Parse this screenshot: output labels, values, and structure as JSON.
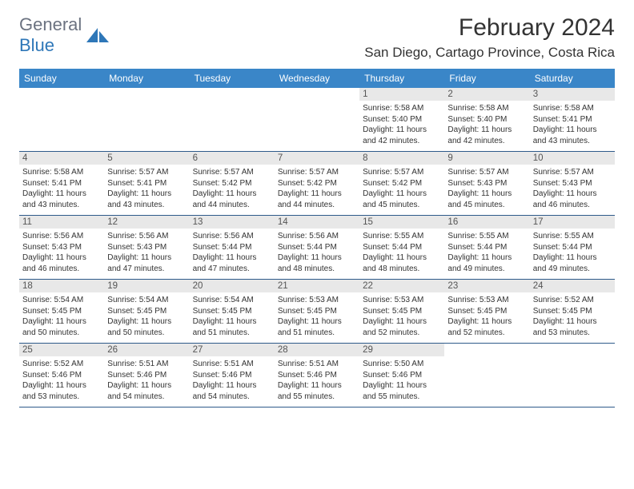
{
  "logo": {
    "text1": "General",
    "text2": "Blue"
  },
  "title": "February 2024",
  "location": "San Diego, Cartago Province, Costa Rica",
  "colors": {
    "header_bg": "#3a86c8",
    "header_text": "#ffffff",
    "daynum_bg": "#e8e8e8",
    "row_border": "#2e5a8a",
    "logo_gray": "#6b7280",
    "logo_blue": "#2e77b8",
    "text": "#333333",
    "background": "#ffffff"
  },
  "day_headers": [
    "Sunday",
    "Monday",
    "Tuesday",
    "Wednesday",
    "Thursday",
    "Friday",
    "Saturday"
  ],
  "weeks": [
    [
      null,
      null,
      null,
      null,
      {
        "n": "1",
        "sr": "5:58 AM",
        "ss": "5:40 PM",
        "dl": "11 hours and 42 minutes."
      },
      {
        "n": "2",
        "sr": "5:58 AM",
        "ss": "5:40 PM",
        "dl": "11 hours and 42 minutes."
      },
      {
        "n": "3",
        "sr": "5:58 AM",
        "ss": "5:41 PM",
        "dl": "11 hours and 43 minutes."
      }
    ],
    [
      {
        "n": "4",
        "sr": "5:58 AM",
        "ss": "5:41 PM",
        "dl": "11 hours and 43 minutes."
      },
      {
        "n": "5",
        "sr": "5:57 AM",
        "ss": "5:41 PM",
        "dl": "11 hours and 43 minutes."
      },
      {
        "n": "6",
        "sr": "5:57 AM",
        "ss": "5:42 PM",
        "dl": "11 hours and 44 minutes."
      },
      {
        "n": "7",
        "sr": "5:57 AM",
        "ss": "5:42 PM",
        "dl": "11 hours and 44 minutes."
      },
      {
        "n": "8",
        "sr": "5:57 AM",
        "ss": "5:42 PM",
        "dl": "11 hours and 45 minutes."
      },
      {
        "n": "9",
        "sr": "5:57 AM",
        "ss": "5:43 PM",
        "dl": "11 hours and 45 minutes."
      },
      {
        "n": "10",
        "sr": "5:57 AM",
        "ss": "5:43 PM",
        "dl": "11 hours and 46 minutes."
      }
    ],
    [
      {
        "n": "11",
        "sr": "5:56 AM",
        "ss": "5:43 PM",
        "dl": "11 hours and 46 minutes."
      },
      {
        "n": "12",
        "sr": "5:56 AM",
        "ss": "5:43 PM",
        "dl": "11 hours and 47 minutes."
      },
      {
        "n": "13",
        "sr": "5:56 AM",
        "ss": "5:44 PM",
        "dl": "11 hours and 47 minutes."
      },
      {
        "n": "14",
        "sr": "5:56 AM",
        "ss": "5:44 PM",
        "dl": "11 hours and 48 minutes."
      },
      {
        "n": "15",
        "sr": "5:55 AM",
        "ss": "5:44 PM",
        "dl": "11 hours and 48 minutes."
      },
      {
        "n": "16",
        "sr": "5:55 AM",
        "ss": "5:44 PM",
        "dl": "11 hours and 49 minutes."
      },
      {
        "n": "17",
        "sr": "5:55 AM",
        "ss": "5:44 PM",
        "dl": "11 hours and 49 minutes."
      }
    ],
    [
      {
        "n": "18",
        "sr": "5:54 AM",
        "ss": "5:45 PM",
        "dl": "11 hours and 50 minutes."
      },
      {
        "n": "19",
        "sr": "5:54 AM",
        "ss": "5:45 PM",
        "dl": "11 hours and 50 minutes."
      },
      {
        "n": "20",
        "sr": "5:54 AM",
        "ss": "5:45 PM",
        "dl": "11 hours and 51 minutes."
      },
      {
        "n": "21",
        "sr": "5:53 AM",
        "ss": "5:45 PM",
        "dl": "11 hours and 51 minutes."
      },
      {
        "n": "22",
        "sr": "5:53 AM",
        "ss": "5:45 PM",
        "dl": "11 hours and 52 minutes."
      },
      {
        "n": "23",
        "sr": "5:53 AM",
        "ss": "5:45 PM",
        "dl": "11 hours and 52 minutes."
      },
      {
        "n": "24",
        "sr": "5:52 AM",
        "ss": "5:45 PM",
        "dl": "11 hours and 53 minutes."
      }
    ],
    [
      {
        "n": "25",
        "sr": "5:52 AM",
        "ss": "5:46 PM",
        "dl": "11 hours and 53 minutes."
      },
      {
        "n": "26",
        "sr": "5:51 AM",
        "ss": "5:46 PM",
        "dl": "11 hours and 54 minutes."
      },
      {
        "n": "27",
        "sr": "5:51 AM",
        "ss": "5:46 PM",
        "dl": "11 hours and 54 minutes."
      },
      {
        "n": "28",
        "sr": "5:51 AM",
        "ss": "5:46 PM",
        "dl": "11 hours and 55 minutes."
      },
      {
        "n": "29",
        "sr": "5:50 AM",
        "ss": "5:46 PM",
        "dl": "11 hours and 55 minutes."
      },
      null,
      null
    ]
  ],
  "labels": {
    "sunrise": "Sunrise: ",
    "sunset": "Sunset: ",
    "daylight": "Daylight: "
  }
}
